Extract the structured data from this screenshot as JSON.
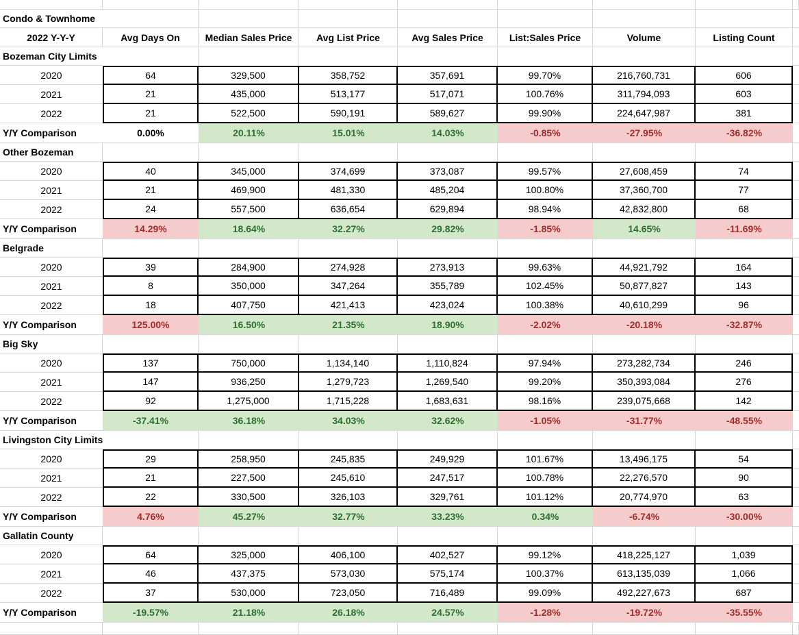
{
  "title": "Condo & Townhome",
  "subtitle": "2022 Y-Y-Y",
  "yy_label": "Y/Y Comparison",
  "columns": [
    "Avg Days On",
    "Median Sales Price",
    "Avg List Price",
    "Avg Sales Price",
    "List:Sales Price",
    "Volume",
    "Listing Count"
  ],
  "colors": {
    "good_bg": "#d3e8cb",
    "good_text": "#2e6e2e",
    "bad_bg": "#f6cbcb",
    "bad_text": "#a12c2c",
    "gridline": "#d6d6d6",
    "tableborder": "#000000"
  },
  "sections": [
    {
      "name": "Bozeman City Limits",
      "ov": "1",
      "rows": [
        {
          "label": "2020",
          "values": [
            "64",
            "329,500",
            "358,752",
            "357,691",
            "99.70%",
            "216,760,731",
            "606"
          ]
        },
        {
          "label": "2021",
          "values": [
            "21",
            "435,000",
            "513,177",
            "517,071",
            "100.76%",
            "311,794,093",
            "603"
          ]
        },
        {
          "label": "2022",
          "values": [
            "21",
            "522,500",
            "590,191",
            "589,627",
            "99.90%",
            "224,647,987",
            "381"
          ]
        }
      ],
      "yy": {
        "cells": [
          {
            "text": "0.00%",
            "state": "plain"
          },
          {
            "text": "20.11%",
            "state": "good"
          },
          {
            "text": "15.01%",
            "state": "good"
          },
          {
            "text": "14.03%",
            "state": "good"
          },
          {
            "text": "-0.85%",
            "state": "bad"
          },
          {
            "text": "-27.95%",
            "state": "bad"
          },
          {
            "text": "-36.82%",
            "state": "bad"
          }
        ]
      }
    },
    {
      "name": "Other Bozeman",
      "ov": "0",
      "rows": [
        {
          "label": "2020",
          "values": [
            "40",
            "345,000",
            "374,699",
            "373,087",
            "99.57%",
            "27,608,459",
            "74"
          ]
        },
        {
          "label": "2021",
          "values": [
            "21",
            "469,900",
            "481,330",
            "485,204",
            "100.80%",
            "37,360,700",
            "77"
          ]
        },
        {
          "label": "2022",
          "values": [
            "24",
            "557,500",
            "636,654",
            "629,894",
            "98.94%",
            "42,832,800",
            "68"
          ]
        }
      ],
      "yy": {
        "cells": [
          {
            "text": "14.29%",
            "state": "bad"
          },
          {
            "text": "18.64%",
            "state": "good"
          },
          {
            "text": "32.27%",
            "state": "good"
          },
          {
            "text": "29.82%",
            "state": "good"
          },
          {
            "text": "-1.85%",
            "state": "bad"
          },
          {
            "text": "14.65%",
            "state": "good"
          },
          {
            "text": "-11.69%",
            "state": "bad"
          }
        ]
      }
    },
    {
      "name": "Belgrade",
      "ov": "0",
      "rows": [
        {
          "label": "2020",
          "values": [
            "39",
            "284,900",
            "274,928",
            "273,913",
            "99.63%",
            "44,921,792",
            "164"
          ]
        },
        {
          "label": "2021",
          "values": [
            "8",
            "350,000",
            "347,264",
            "355,789",
            "102.45%",
            "50,877,827",
            "143"
          ]
        },
        {
          "label": "2022",
          "values": [
            "18",
            "407,750",
            "421,413",
            "423,024",
            "100.38%",
            "40,610,299",
            "96"
          ]
        }
      ],
      "yy": {
        "cells": [
          {
            "text": "125.00%",
            "state": "bad"
          },
          {
            "text": "16.50%",
            "state": "good"
          },
          {
            "text": "21.35%",
            "state": "good"
          },
          {
            "text": "18.90%",
            "state": "good"
          },
          {
            "text": "-2.02%",
            "state": "bad"
          },
          {
            "text": "-20.18%",
            "state": "bad"
          },
          {
            "text": "-32.87%",
            "state": "bad"
          }
        ]
      }
    },
    {
      "name": "Big Sky",
      "ov": "0",
      "rows": [
        {
          "label": "2020",
          "values": [
            "137",
            "750,000",
            "1,134,140",
            "1,110,824",
            "97.94%",
            "273,282,734",
            "246"
          ]
        },
        {
          "label": "2021",
          "values": [
            "147",
            "936,250",
            "1,279,723",
            "1,269,540",
            "99.20%",
            "350,393,084",
            "276"
          ]
        },
        {
          "label": "2022",
          "values": [
            "92",
            "1,275,000",
            "1,715,228",
            "1,683,631",
            "98.16%",
            "239,075,668",
            "142"
          ]
        }
      ],
      "yy": {
        "cells": [
          {
            "text": "-37.41%",
            "state": "good"
          },
          {
            "text": "36.18%",
            "state": "good"
          },
          {
            "text": "34.03%",
            "state": "good"
          },
          {
            "text": "32.62%",
            "state": "good"
          },
          {
            "text": "-1.05%",
            "state": "bad"
          },
          {
            "text": "-31.77%",
            "state": "bad"
          },
          {
            "text": "-48.55%",
            "state": "bad"
          }
        ]
      }
    },
    {
      "name": "Livingston City Limits",
      "ov": "1",
      "rows": [
        {
          "label": "2020",
          "values": [
            "29",
            "258,950",
            "245,835",
            "249,929",
            "101.67%",
            "13,496,175",
            "54"
          ]
        },
        {
          "label": "2021",
          "values": [
            "21",
            "227,500",
            "245,610",
            "247,517",
            "100.78%",
            "22,276,570",
            "90"
          ]
        },
        {
          "label": "2022",
          "values": [
            "22",
            "330,500",
            "326,103",
            "329,761",
            "101.12%",
            "20,774,970",
            "63"
          ]
        }
      ],
      "yy": {
        "cells": [
          {
            "text": "4.76%",
            "state": "bad"
          },
          {
            "text": "45.27%",
            "state": "good"
          },
          {
            "text": "32.77%",
            "state": "good"
          },
          {
            "text": "33.23%",
            "state": "good"
          },
          {
            "text": "0.34%",
            "state": "good"
          },
          {
            "text": "-6.74%",
            "state": "bad"
          },
          {
            "text": "-30.00%",
            "state": "bad"
          }
        ]
      }
    },
    {
      "name": "Gallatin County",
      "ov": "0",
      "rows": [
        {
          "label": "2020",
          "values": [
            "64",
            "325,000",
            "406,100",
            "402,527",
            "99.12%",
            "418,225,127",
            "1,039"
          ]
        },
        {
          "label": "2021",
          "values": [
            "46",
            "437,375",
            "573,030",
            "575,174",
            "100.37%",
            "613,135,039",
            "1,066"
          ]
        },
        {
          "label": "2022",
          "values": [
            "37",
            "530,000",
            "723,050",
            "716,489",
            "99.09%",
            "492,227,673",
            "687"
          ]
        }
      ],
      "yy": {
        "cells": [
          {
            "text": "-19.57%",
            "state": "good"
          },
          {
            "text": "21.18%",
            "state": "good"
          },
          {
            "text": "26.18%",
            "state": "good"
          },
          {
            "text": "24.57%",
            "state": "good"
          },
          {
            "text": "-1.28%",
            "state": "bad"
          },
          {
            "text": "-19.72%",
            "state": "bad"
          },
          {
            "text": "-35.55%",
            "state": "bad"
          }
        ]
      }
    }
  ]
}
